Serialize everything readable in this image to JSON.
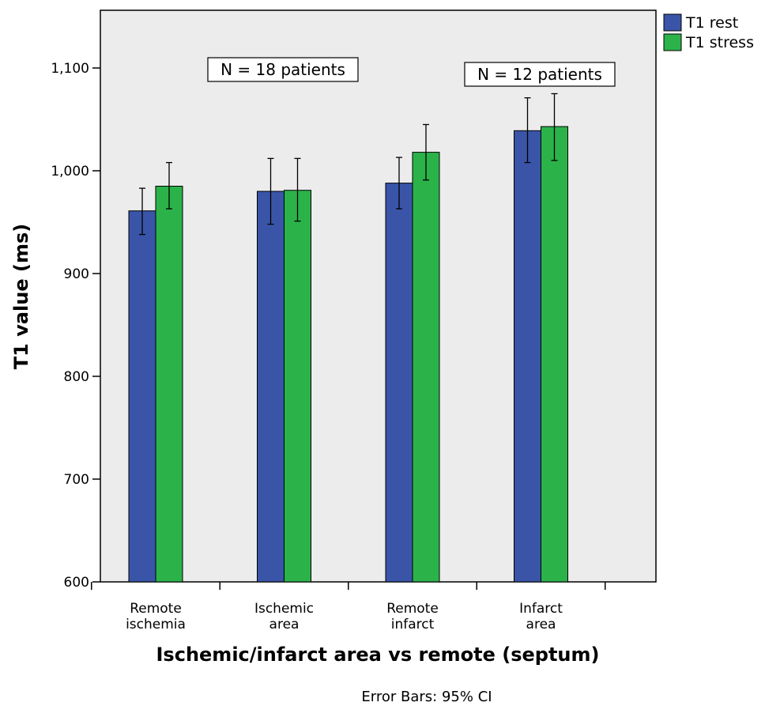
{
  "chart_data": {
    "type": "bar",
    "title": "",
    "xlabel": "Ischemic/infarct area vs remote (septum)",
    "ylabel": "T1 value (ms)",
    "ylim": [
      600,
      1150
    ],
    "yticks": [
      600,
      700,
      800,
      900,
      1000,
      1100
    ],
    "ytick_labels": [
      "600",
      "700",
      "800",
      "900",
      "1,000",
      "1,100"
    ],
    "grid": false,
    "legend_position": "top-right",
    "categories": [
      [
        "Remote",
        "ischemia"
      ],
      [
        "Ischemic",
        "area"
      ],
      [
        "Remote",
        "infarct"
      ],
      [
        "Infarct",
        "area"
      ]
    ],
    "series": [
      {
        "name": "T1 rest",
        "color": "#3a55a8",
        "values": [
          961,
          980,
          988,
          1039
        ],
        "ci_low": [
          938,
          948,
          963,
          1008
        ],
        "ci_high": [
          983,
          1012,
          1013,
          1071
        ]
      },
      {
        "name": "T1 stress",
        "color": "#2bb34a",
        "values": [
          985,
          981,
          1018,
          1043
        ],
        "ci_low": [
          963,
          951,
          991,
          1010
        ],
        "ci_high": [
          1008,
          1012,
          1045,
          1075
        ]
      }
    ],
    "annotations": [
      {
        "text": "N = 18 patients",
        "between_categories": [
          0,
          1
        ]
      },
      {
        "text": "N = 12 patients",
        "between_categories": [
          2,
          3
        ]
      }
    ],
    "footnote": "Error Bars: 95% CI",
    "colors": {
      "plot_background": "#ececec",
      "axis": "#000000"
    }
  }
}
